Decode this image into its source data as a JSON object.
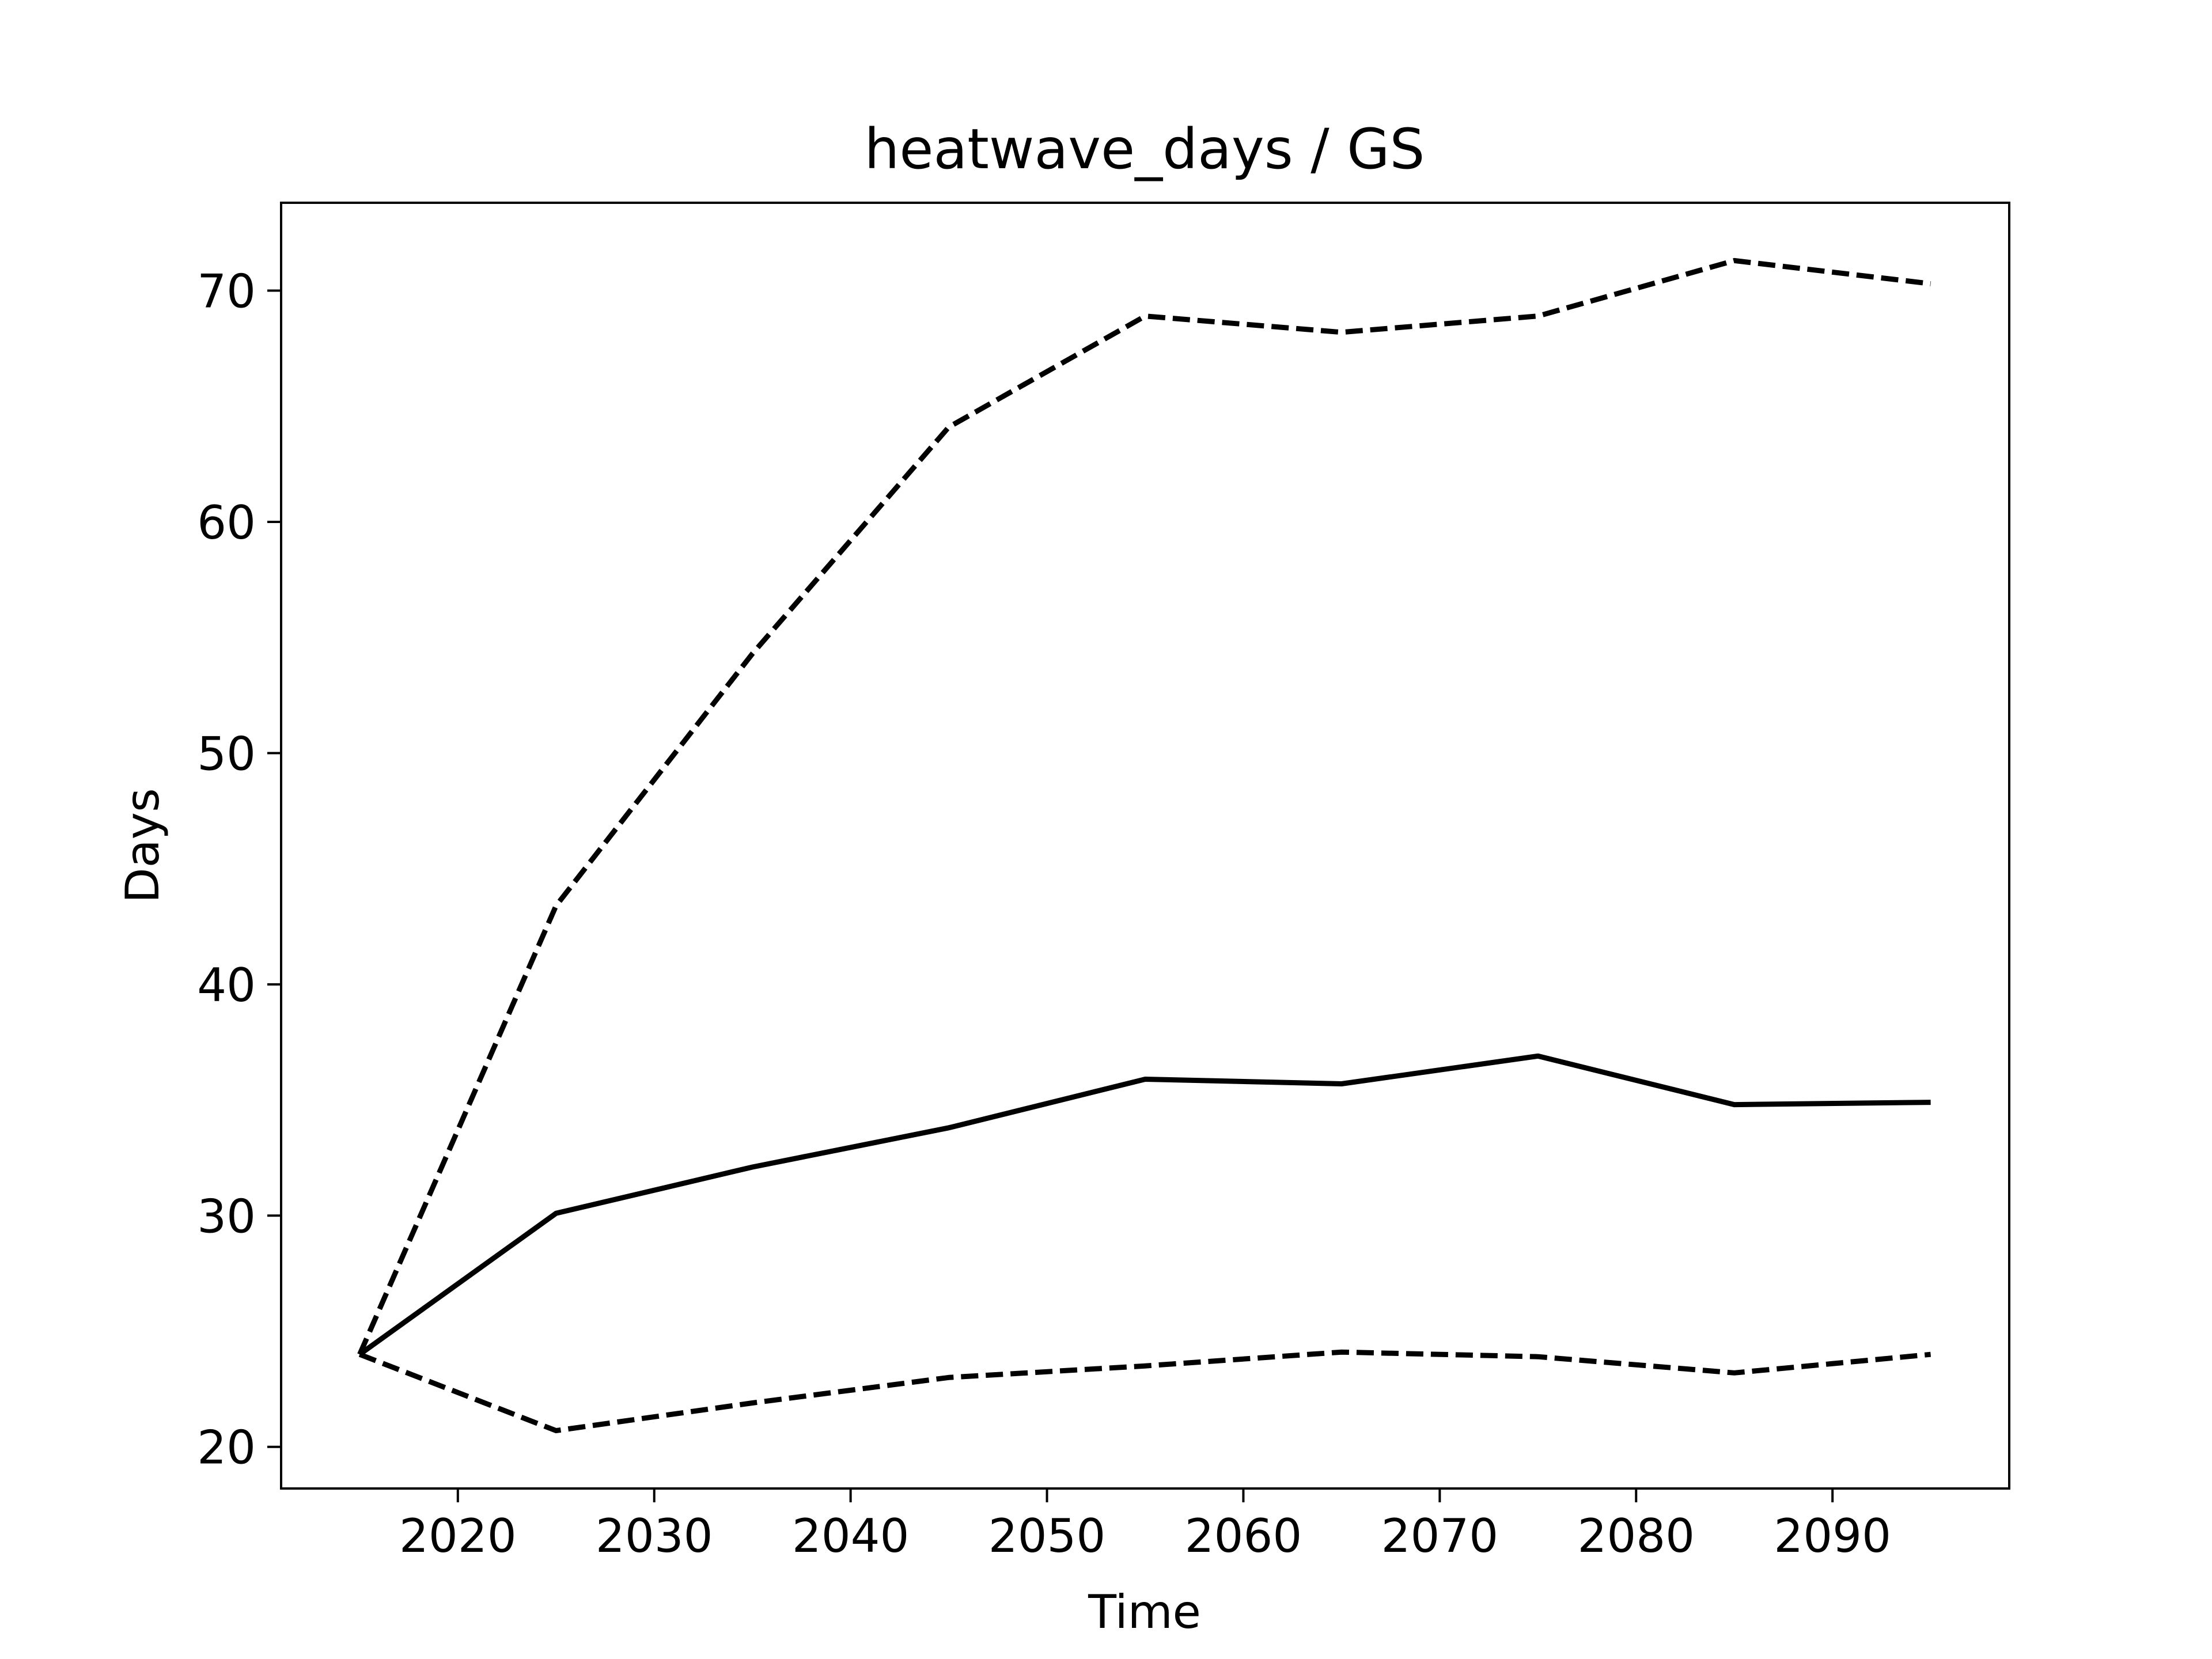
{
  "chart_data": {
    "type": "line",
    "title": "heatwave_days / GS",
    "xlabel": "Time",
    "ylabel": "Days",
    "xlim": [
      2011,
      2099
    ],
    "ylim": [
      18.2,
      73.8
    ],
    "x_ticks": [
      2020,
      2030,
      2040,
      2050,
      2060,
      2070,
      2080,
      2090
    ],
    "y_ticks": [
      20,
      30,
      40,
      50,
      60,
      70
    ],
    "grid": false,
    "legend": "none",
    "x": [
      2015,
      2025,
      2035,
      2045,
      2055,
      2065,
      2075,
      2085,
      2095
    ],
    "series": [
      {
        "style": "solid",
        "color": "#000000",
        "values": [
          24.0,
          30.1,
          32.1,
          33.8,
          35.9,
          35.7,
          36.9,
          34.8,
          34.9
        ]
      },
      {
        "style": "dashed",
        "color": "#000000",
        "values": [
          24.0,
          43.4,
          54.3,
          64.1,
          68.9,
          68.2,
          68.9,
          71.3,
          70.3
        ]
      },
      {
        "style": "dashed",
        "color": "#000000",
        "values": [
          24.0,
          20.7,
          21.9,
          23.0,
          23.5,
          24.1,
          23.9,
          23.2,
          24.0
        ]
      }
    ]
  }
}
